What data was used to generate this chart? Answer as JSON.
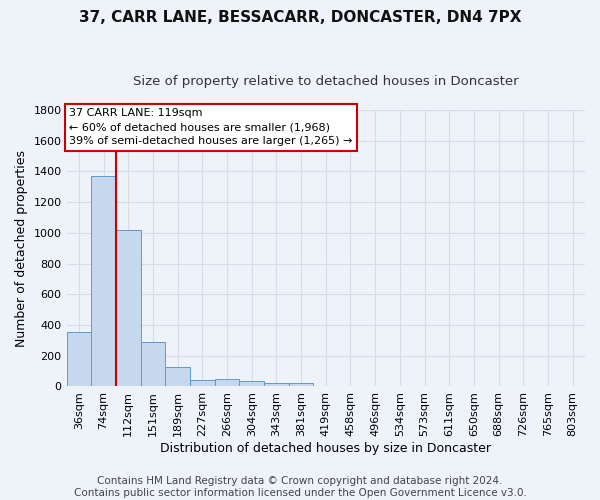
{
  "title": "37, CARR LANE, BESSACARR, DONCASTER, DN4 7PX",
  "subtitle": "Size of property relative to detached houses in Doncaster",
  "xlabel": "Distribution of detached houses by size in Doncaster",
  "ylabel": "Number of detached properties",
  "bar_labels": [
    "36sqm",
    "74sqm",
    "112sqm",
    "151sqm",
    "189sqm",
    "227sqm",
    "266sqm",
    "304sqm",
    "343sqm",
    "381sqm",
    "419sqm",
    "458sqm",
    "496sqm",
    "534sqm",
    "573sqm",
    "611sqm",
    "650sqm",
    "688sqm",
    "726sqm",
    "765sqm",
    "803sqm"
  ],
  "bar_values": [
    355,
    1370,
    1020,
    290,
    125,
    45,
    47,
    35,
    22,
    20,
    5,
    5,
    5,
    3,
    3,
    2,
    2,
    2,
    2,
    2,
    0
  ],
  "bar_color": "#c5d8ee",
  "bar_edge_color": "#5b9bd5",
  "background_color": "#eef2f9",
  "grid_color": "#d8dce8",
  "red_line_x": 1.5,
  "red_line_color": "#cc0000",
  "annotation_text_line1": "37 CARR LANE: 119sqm",
  "annotation_text_line2": "← 60% of detached houses are smaller (1,968)",
  "annotation_text_line3": "39% of semi-detached houses are larger (1,265) →",
  "annotation_box_color": "#cc0000",
  "footer_line1": "Contains HM Land Registry data © Crown copyright and database right 2024.",
  "footer_line2": "Contains public sector information licensed under the Open Government Licence v3.0.",
  "ylim": [
    0,
    1800
  ],
  "yticks": [
    0,
    200,
    400,
    600,
    800,
    1000,
    1200,
    1400,
    1600,
    1800
  ],
  "title_fontsize": 11,
  "subtitle_fontsize": 9.5,
  "axis_label_fontsize": 9,
  "tick_fontsize": 8,
  "annotation_fontsize": 8,
  "footer_fontsize": 7.5
}
